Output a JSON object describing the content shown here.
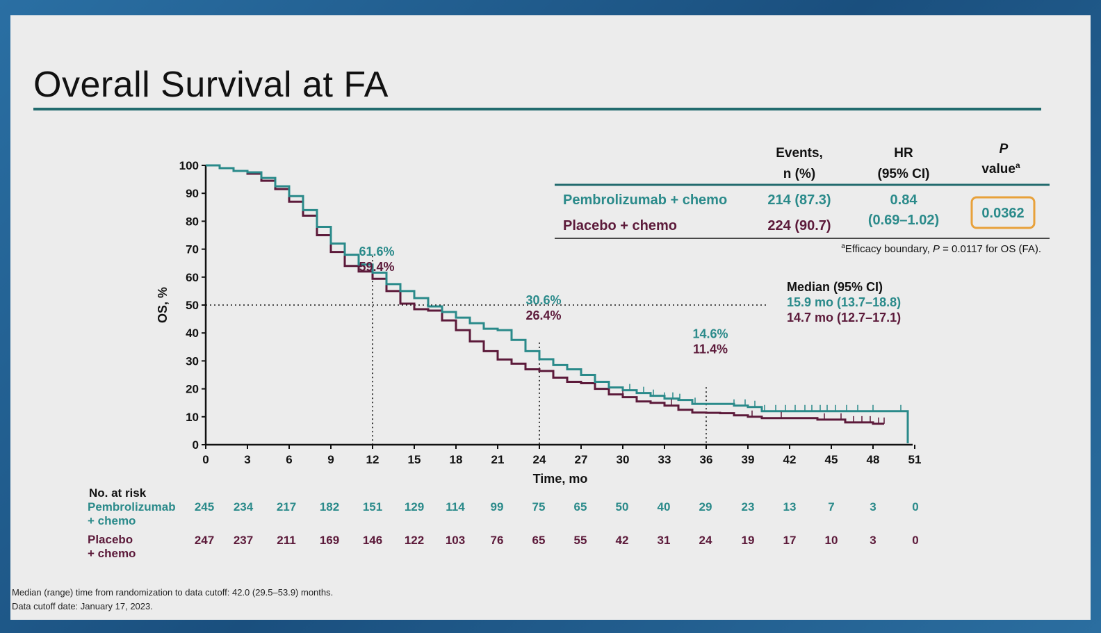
{
  "slide": {
    "title": "Overall Survival at FA",
    "footnote_line1": "Median (range) time from randomization to data cutoff: 42.0 (29.5–53.9) months.",
    "footnote_line2": "Data cutoff date: January 17, 2023."
  },
  "colors": {
    "pembro": "#2a8a8a",
    "placebo": "#5c1a3a",
    "accent": "#226b6e",
    "pbox": "#e8a13a"
  },
  "stats_table": {
    "headers": {
      "events_1": "Events,",
      "events_2": "n (%)",
      "hr_1": "HR",
      "hr_2": "(95% CI)",
      "p_1": "P",
      "p_2": "value",
      "p_sup": "a"
    },
    "rows": [
      {
        "name": "Pembrolizumab + chemo",
        "events": "214 (87.3)"
      },
      {
        "name": "Placebo + chemo",
        "events": "224 (90.7)"
      }
    ],
    "hr_value": "0.84",
    "hr_ci": "(0.69–1.02)",
    "p_value": "0.0362",
    "footnote_sup": "a",
    "footnote_pre": "Efficacy boundary, ",
    "footnote_p": "P",
    "footnote_post": " = 0.0117 for OS (FA)."
  },
  "median_box": {
    "header": "Median (95% CI)",
    "pembro": "15.9 mo (13.7–18.8)",
    "placebo": "14.7 mo (12.7–17.1)"
  },
  "landmarks": [
    {
      "x": 12,
      "pembro": "61.6%",
      "placebo": "59.4%"
    },
    {
      "x": 24,
      "pembro": "30.6%",
      "placebo": "26.4%"
    },
    {
      "x": 36,
      "pembro": "14.6%",
      "placebo": "11.4%"
    }
  ],
  "risk_table": {
    "header": "No. at risk",
    "pembro_label_1": "Pembrolizumab",
    "pembro_label_2": "+ chemo",
    "placebo_label_1": "Placebo",
    "placebo_label_2": "+ chemo",
    "pembro": [
      "245",
      "234",
      "217",
      "182",
      "151",
      "129",
      "114",
      "99",
      "75",
      "65",
      "50",
      "40",
      "29",
      "23",
      "13",
      "7",
      "3",
      "0"
    ],
    "placebo": [
      "247",
      "237",
      "211",
      "169",
      "146",
      "122",
      "103",
      "76",
      "65",
      "55",
      "42",
      "31",
      "24",
      "19",
      "17",
      "10",
      "3",
      "0"
    ]
  },
  "chart_data": {
    "type": "line",
    "xlabel": "Time, mo",
    "ylabel": "OS, %",
    "xlim": [
      0,
      51
    ],
    "ylim": [
      0,
      100
    ],
    "xticks": [
      0,
      3,
      6,
      9,
      12,
      15,
      18,
      21,
      24,
      27,
      30,
      33,
      36,
      39,
      42,
      45,
      48,
      51
    ],
    "yticks": [
      0,
      10,
      20,
      30,
      40,
      50,
      60,
      70,
      80,
      90,
      100
    ],
    "reference_line_y": 50,
    "series": [
      {
        "name": "Pembrolizumab + chemo",
        "color": "#2a8a8a",
        "points": [
          [
            0,
            100
          ],
          [
            1,
            99
          ],
          [
            2,
            98
          ],
          [
            3,
            97.5
          ],
          [
            4,
            95.5
          ],
          [
            5,
            92.5
          ],
          [
            6,
            89
          ],
          [
            7,
            84
          ],
          [
            8,
            78
          ],
          [
            9,
            72
          ],
          [
            10,
            68
          ],
          [
            11,
            64.5
          ],
          [
            12,
            61.6
          ],
          [
            13,
            57.5
          ],
          [
            14,
            55
          ],
          [
            15,
            52.5
          ],
          [
            16,
            49.5
          ],
          [
            17,
            47.5
          ],
          [
            18,
            45.5
          ],
          [
            19,
            43.5
          ],
          [
            20,
            41.5
          ],
          [
            21,
            41
          ],
          [
            22,
            37.5
          ],
          [
            23,
            33.5
          ],
          [
            24,
            30.6
          ],
          [
            25,
            28.5
          ],
          [
            26,
            27
          ],
          [
            27,
            25
          ],
          [
            28,
            22.5
          ],
          [
            29,
            20.5
          ],
          [
            30,
            19.5
          ],
          [
            31,
            18.5
          ],
          [
            32,
            17.5
          ],
          [
            33,
            16.5
          ],
          [
            34,
            16
          ],
          [
            35,
            14.6
          ],
          [
            36,
            14.6
          ],
          [
            37,
            14.6
          ],
          [
            38,
            14
          ],
          [
            39,
            13.5
          ],
          [
            40,
            12
          ],
          [
            41,
            12
          ],
          [
            42,
            12
          ],
          [
            44,
            12
          ],
          [
            46,
            12
          ],
          [
            48,
            12
          ],
          [
            50.5,
            12
          ],
          [
            50.5,
            0.5
          ]
        ]
      },
      {
        "name": "Placebo + chemo",
        "color": "#5c1a3a",
        "points": [
          [
            0,
            100
          ],
          [
            1,
            99
          ],
          [
            2,
            98
          ],
          [
            3,
            97
          ],
          [
            4,
            94.5
          ],
          [
            5,
            91.5
          ],
          [
            6,
            87
          ],
          [
            7,
            82
          ],
          [
            8,
            75
          ],
          [
            9,
            69
          ],
          [
            10,
            64
          ],
          [
            11,
            62
          ],
          [
            12,
            59.4
          ],
          [
            13,
            55
          ],
          [
            14,
            50.5
          ],
          [
            15,
            48.5
          ],
          [
            16,
            48
          ],
          [
            17,
            44.5
          ],
          [
            18,
            41
          ],
          [
            19,
            37
          ],
          [
            20,
            33.5
          ],
          [
            21,
            30.5
          ],
          [
            22,
            29
          ],
          [
            23,
            27
          ],
          [
            24,
            26.4
          ],
          [
            25,
            24
          ],
          [
            26,
            22.5
          ],
          [
            27,
            22
          ],
          [
            28,
            20
          ],
          [
            29,
            18
          ],
          [
            30,
            17
          ],
          [
            31,
            15.5
          ],
          [
            32,
            15
          ],
          [
            33,
            14
          ],
          [
            34,
            12.5
          ],
          [
            35,
            11.5
          ],
          [
            36,
            11.4
          ],
          [
            37,
            11.3
          ],
          [
            38,
            10.5
          ],
          [
            39,
            10
          ],
          [
            40,
            9.5
          ],
          [
            41,
            9.5
          ],
          [
            43,
            9.5
          ],
          [
            44,
            9
          ],
          [
            46,
            8
          ],
          [
            48,
            7.5
          ],
          [
            48.8,
            7.5
          ]
        ]
      }
    ]
  }
}
